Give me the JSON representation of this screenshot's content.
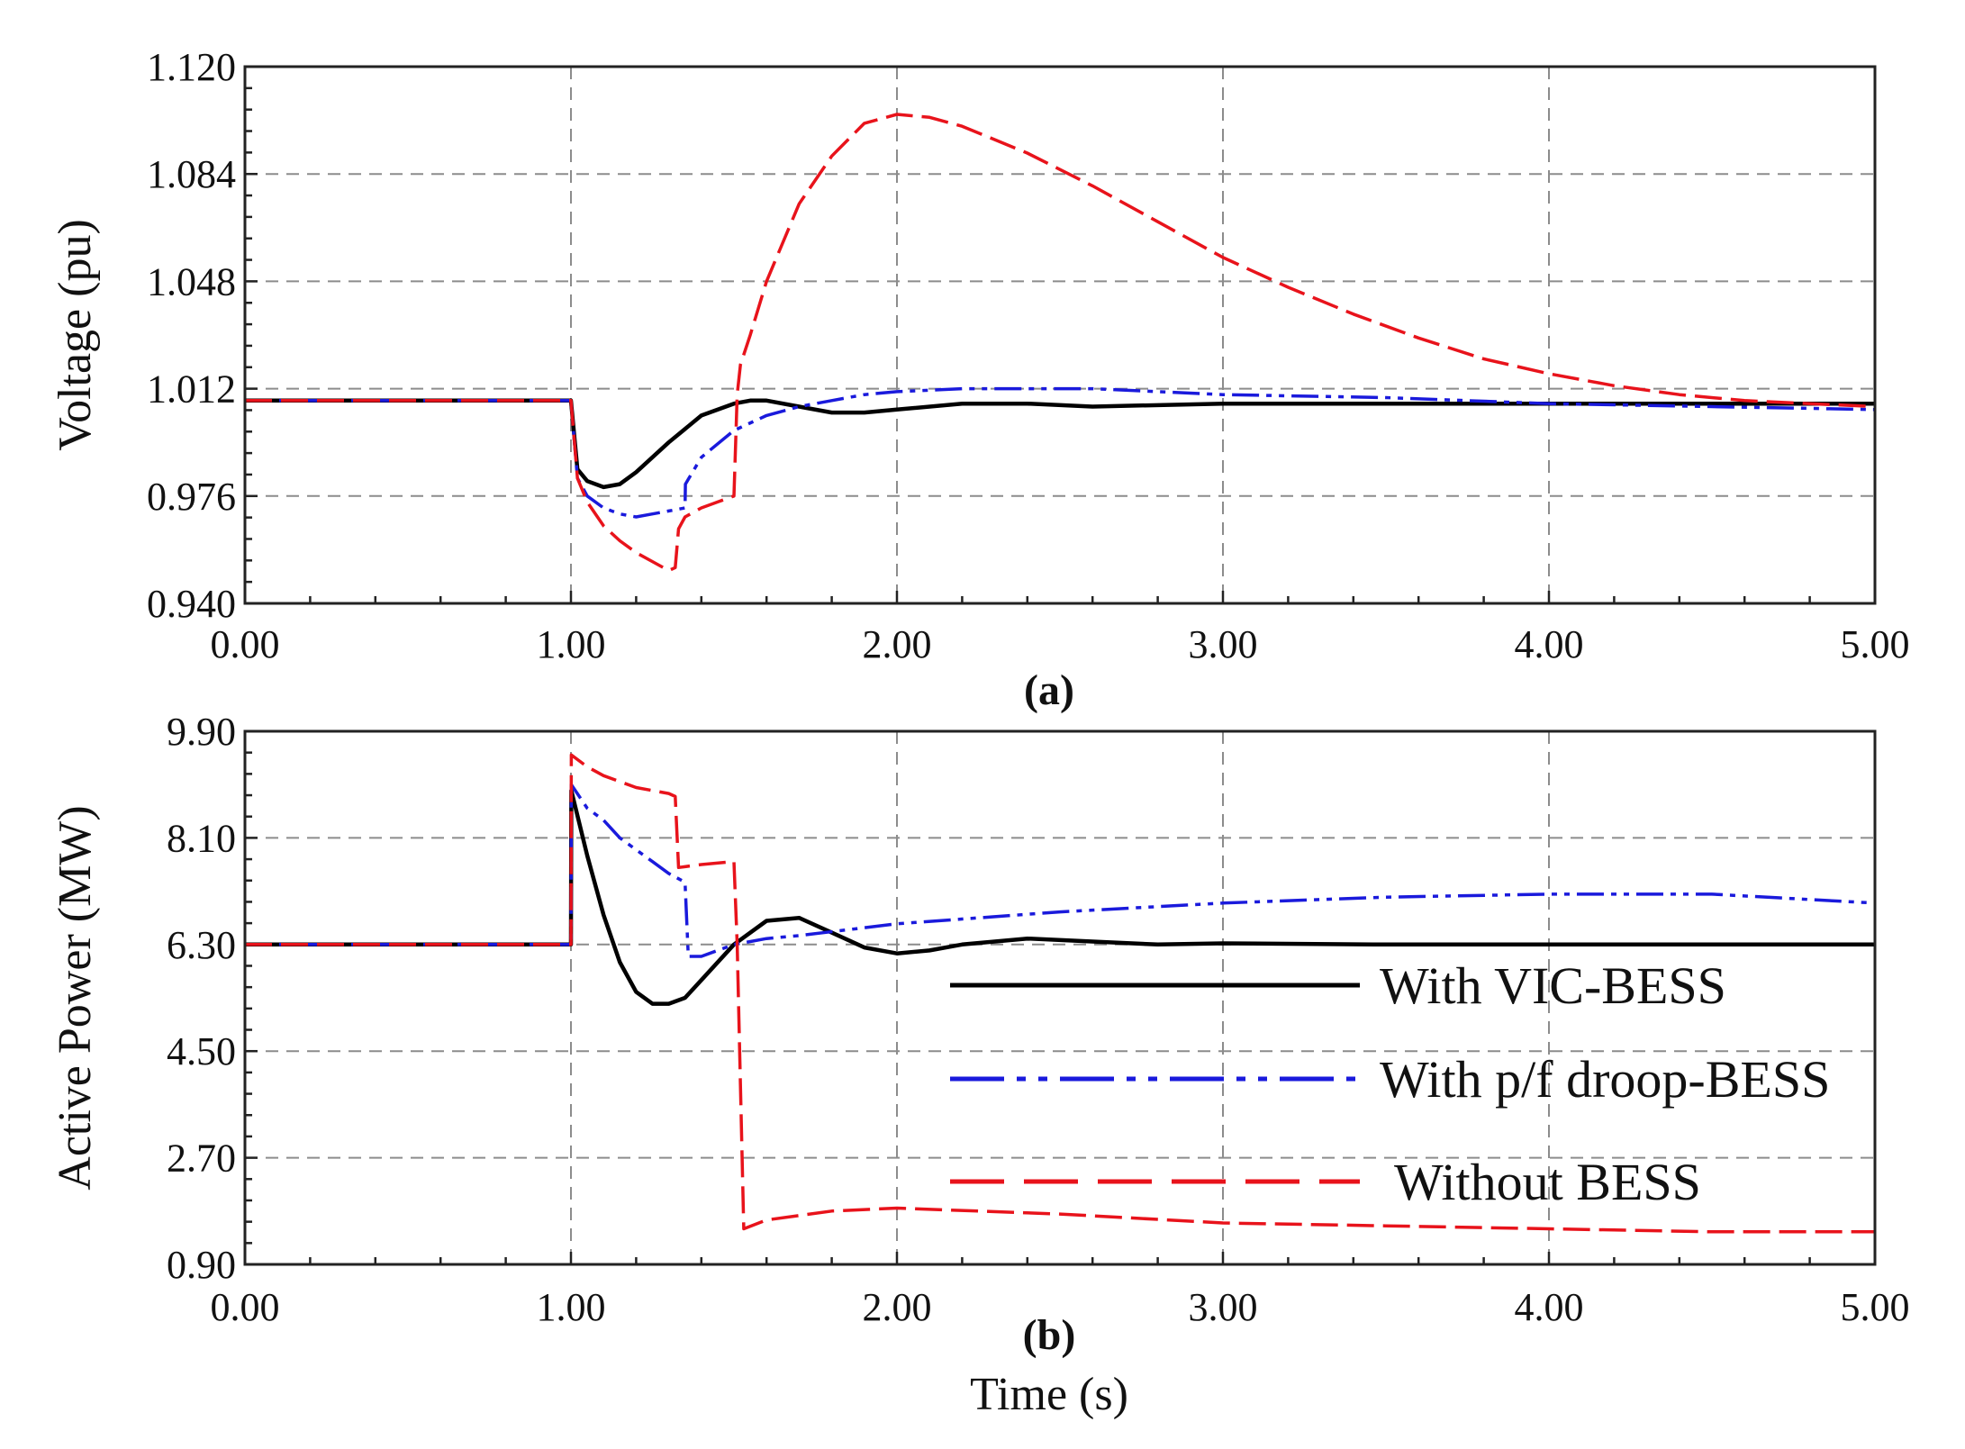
{
  "xlabel": "Time (s)",
  "colors": {
    "vic": "#000000",
    "droop": "#1a1adc",
    "none": "#e8131b"
  },
  "legend": {
    "position": "inside-right of panel (b)",
    "entries": [
      {
        "label": "With VIC-BESS",
        "color": "#000000",
        "style": "solid"
      },
      {
        "label": "With p/f droop-BESS",
        "color": "#1a1adc",
        "style": "dash-dot-dot"
      },
      {
        "label": "Without BESS",
        "color": "#e8131b",
        "style": "dashed"
      }
    ]
  },
  "chart_data": [
    {
      "type": "line",
      "panel_label": "(a)",
      "ylabel": "Voltage (pu)",
      "xlim": [
        0,
        5
      ],
      "ylim": [
        0.94,
        1.12
      ],
      "xticks": [
        "0.00",
        "1.00",
        "2.00",
        "3.00",
        "4.00",
        "5.00"
      ],
      "yticks": [
        "0.940",
        "0.976",
        "1.012",
        "1.048",
        "1.084",
        "1.120"
      ],
      "grid": true,
      "series": [
        {
          "name": "With VIC-BESS",
          "color": "#000000",
          "style": "solid",
          "x": [
            0,
            1.0,
            1.02,
            1.05,
            1.1,
            1.15,
            1.2,
            1.3,
            1.4,
            1.5,
            1.55,
            1.6,
            1.7,
            1.8,
            1.9,
            2.0,
            2.2,
            2.4,
            2.6,
            3.0,
            3.5,
            4.0,
            4.5,
            5.0
          ],
          "y": [
            1.008,
            1.008,
            0.985,
            0.981,
            0.979,
            0.98,
            0.984,
            0.994,
            1.003,
            1.007,
            1.008,
            1.008,
            1.006,
            1.004,
            1.004,
            1.005,
            1.007,
            1.007,
            1.006,
            1.007,
            1.007,
            1.007,
            1.007,
            1.007
          ]
        },
        {
          "name": "With p/f droop-BESS",
          "color": "#1a1adc",
          "style": "dash-dot-dot",
          "x": [
            0,
            1.0,
            1.02,
            1.05,
            1.1,
            1.15,
            1.2,
            1.25,
            1.3,
            1.35,
            1.351,
            1.4,
            1.5,
            1.6,
            1.7,
            1.8,
            1.9,
            2.0,
            2.2,
            2.4,
            2.6,
            3.0,
            3.5,
            4.0,
            4.5,
            5.0
          ],
          "y": [
            1.008,
            1.008,
            0.982,
            0.976,
            0.972,
            0.97,
            0.969,
            0.97,
            0.971,
            0.972,
            0.98,
            0.989,
            0.998,
            1.003,
            1.006,
            1.008,
            1.01,
            1.011,
            1.012,
            1.012,
            1.012,
            1.01,
            1.009,
            1.007,
            1.006,
            1.005
          ]
        },
        {
          "name": "Without BESS",
          "color": "#e8131b",
          "style": "dashed",
          "x": [
            0,
            1.0,
            1.02,
            1.05,
            1.1,
            1.15,
            1.2,
            1.25,
            1.3,
            1.32,
            1.33,
            1.35,
            1.4,
            1.45,
            1.5,
            1.51,
            1.52,
            1.55,
            1.6,
            1.7,
            1.8,
            1.9,
            2.0,
            2.1,
            2.2,
            2.4,
            2.6,
            2.8,
            3.0,
            3.2,
            3.4,
            3.6,
            3.8,
            4.0,
            4.2,
            4.4,
            4.6,
            4.8,
            5.0
          ],
          "y": [
            1.008,
            1.008,
            0.982,
            0.974,
            0.966,
            0.961,
            0.957,
            0.954,
            0.951,
            0.952,
            0.965,
            0.969,
            0.972,
            0.974,
            0.976,
            1.01,
            1.02,
            1.03,
            1.048,
            1.074,
            1.09,
            1.101,
            1.104,
            1.103,
            1.1,
            1.091,
            1.08,
            1.068,
            1.056,
            1.046,
            1.037,
            1.029,
            1.022,
            1.017,
            1.013,
            1.01,
            1.008,
            1.007,
            1.006
          ]
        }
      ]
    },
    {
      "type": "line",
      "panel_label": "(b)",
      "ylabel": "Active Power (MW)",
      "xlim": [
        0,
        5
      ],
      "ylim": [
        0.9,
        9.9
      ],
      "xticks": [
        "0.00",
        "1.00",
        "2.00",
        "3.00",
        "4.00",
        "5.00"
      ],
      "yticks": [
        "0.90",
        "2.70",
        "4.50",
        "6.30",
        "8.10",
        "9.90"
      ],
      "grid": true,
      "series": [
        {
          "name": "With VIC-BESS",
          "color": "#000000",
          "style": "solid",
          "x": [
            0,
            1.0,
            1.001,
            1.05,
            1.1,
            1.15,
            1.2,
            1.25,
            1.3,
            1.35,
            1.4,
            1.5,
            1.6,
            1.7,
            1.8,
            1.9,
            2.0,
            2.1,
            2.2,
            2.4,
            2.6,
            2.8,
            3.0,
            3.5,
            4.0,
            4.5,
            5.0
          ],
          "y": [
            6.3,
            6.3,
            8.9,
            7.8,
            6.8,
            6.0,
            5.5,
            5.3,
            5.3,
            5.4,
            5.7,
            6.3,
            6.7,
            6.75,
            6.5,
            6.25,
            6.15,
            6.2,
            6.3,
            6.4,
            6.35,
            6.3,
            6.32,
            6.3,
            6.3,
            6.3,
            6.3
          ]
        },
        {
          "name": "With p/f droop-BESS",
          "color": "#1a1adc",
          "style": "dash-dot-dot",
          "x": [
            0,
            1.0,
            1.001,
            1.05,
            1.1,
            1.15,
            1.2,
            1.25,
            1.3,
            1.35,
            1.36,
            1.4,
            1.5,
            1.6,
            1.7,
            2.0,
            2.5,
            3.0,
            3.5,
            4.0,
            4.5,
            5.0
          ],
          "y": [
            6.3,
            6.3,
            9.0,
            8.6,
            8.4,
            8.1,
            7.9,
            7.7,
            7.5,
            7.35,
            6.1,
            6.1,
            6.3,
            6.4,
            6.45,
            6.65,
            6.85,
            7.0,
            7.1,
            7.15,
            7.15,
            7.0
          ]
        },
        {
          "name": "Without BESS",
          "color": "#e8131b",
          "style": "dashed",
          "x": [
            0,
            1.0,
            1.001,
            1.05,
            1.1,
            1.15,
            1.2,
            1.25,
            1.3,
            1.32,
            1.33,
            1.4,
            1.5,
            1.51,
            1.53,
            1.6,
            1.8,
            2.0,
            2.5,
            3.0,
            3.5,
            4.0,
            4.5,
            5.0
          ],
          "y": [
            6.3,
            6.3,
            9.5,
            9.3,
            9.15,
            9.05,
            8.95,
            8.9,
            8.85,
            8.8,
            7.6,
            7.65,
            7.7,
            6.3,
            1.5,
            1.65,
            1.8,
            1.85,
            1.75,
            1.6,
            1.55,
            1.5,
            1.45,
            1.45
          ]
        }
      ]
    }
  ]
}
